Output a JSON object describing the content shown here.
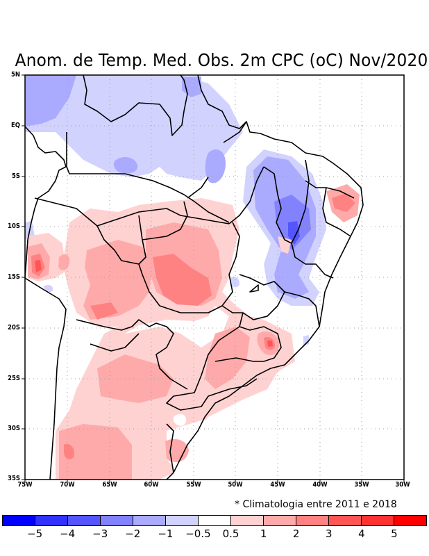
{
  "title": "Anom. de Temp. Med. Obs. 2m CPC (oC) Nov/2020",
  "map": {
    "lat_range": [
      "5N",
      "35S"
    ],
    "lon_range": [
      "75W",
      "30W"
    ],
    "lat_ticks": [
      "5N",
      "EQ",
      "5S",
      "10S",
      "15S",
      "20S",
      "25S",
      "30S",
      "35S"
    ],
    "lon_ticks": [
      "75W",
      "70W",
      "65W",
      "60W",
      "55W",
      "50W",
      "45W",
      "40W",
      "35W",
      "30W"
    ],
    "variable": "2m temperature anomaly",
    "units": "oC"
  },
  "note": "* Climatologia entre 2011 e 2018",
  "colorbar": {
    "colors": [
      "#0000ff",
      "#3232ff",
      "#5555ff",
      "#8282ff",
      "#aaaaff",
      "#d2d2ff",
      "#ffffff",
      "#ffd2d2",
      "#ffaaaa",
      "#ff8282",
      "#ff5555",
      "#ff3232",
      "#ff0000"
    ],
    "labels": [
      "-5",
      "-4",
      "-3",
      "-2",
      "-1",
      "-0.5",
      "0.5",
      "1",
      "2",
      "3",
      "4",
      "5"
    ]
  }
}
